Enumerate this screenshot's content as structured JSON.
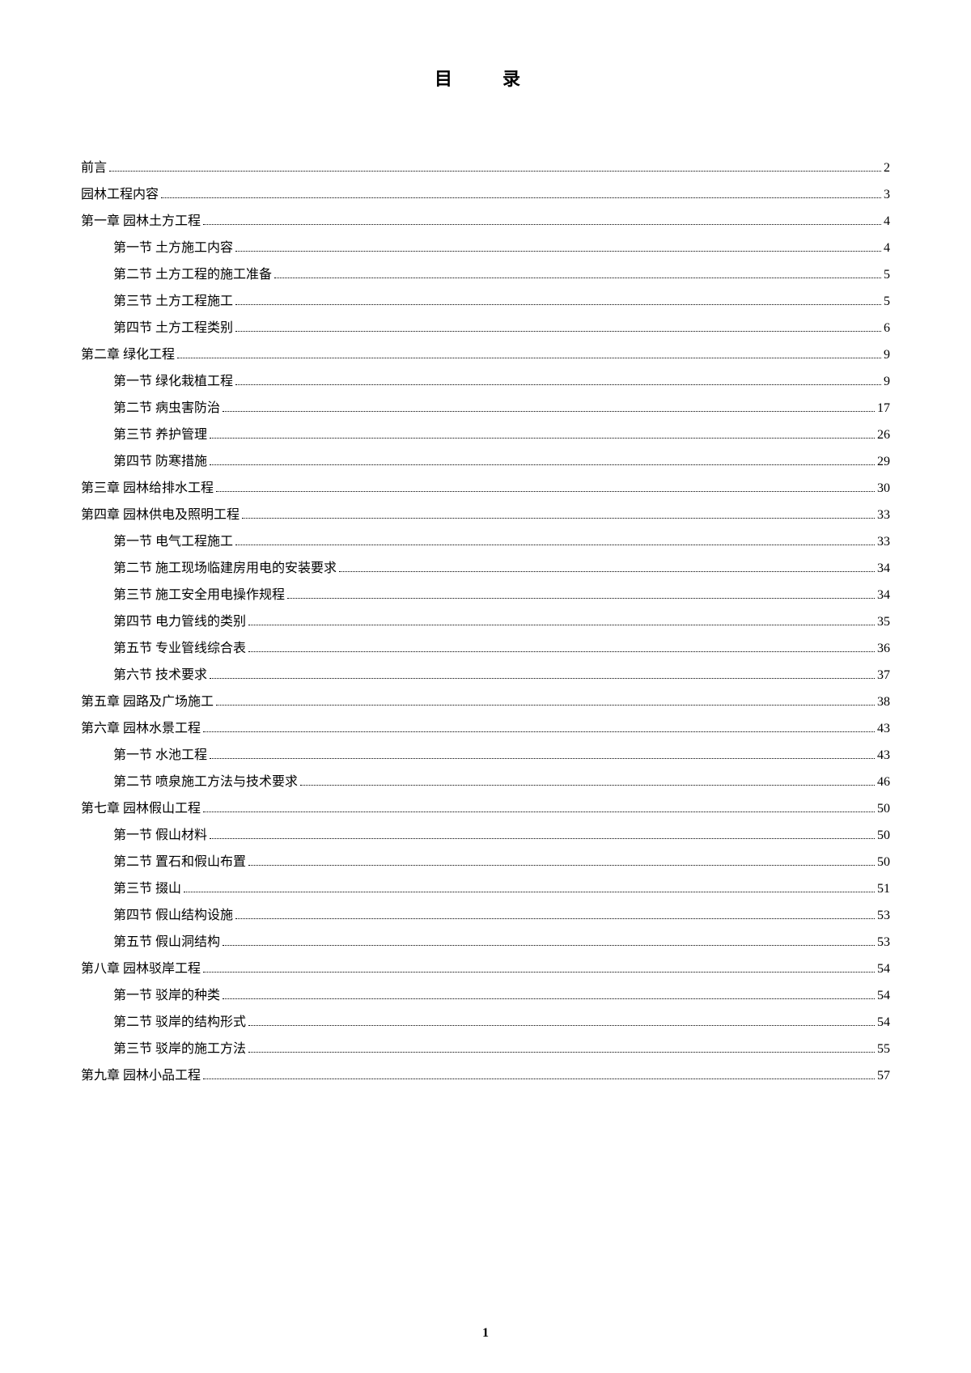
{
  "title": "目　录",
  "toc": [
    {
      "level": 0,
      "label": "前言",
      "page": "2"
    },
    {
      "level": 0,
      "label": "园林工程内容",
      "page": "3"
    },
    {
      "level": 1,
      "label": "第一章  园林土方工程",
      "page": "4"
    },
    {
      "level": 2,
      "label": "第一节  土方施工内容",
      "page": "4"
    },
    {
      "level": 2,
      "label": "第二节  土方工程的施工准备",
      "page": "5"
    },
    {
      "level": 2,
      "label": "第三节  土方工程施工",
      "page": "5"
    },
    {
      "level": 2,
      "label": "第四节  土方工程类别",
      "page": "6"
    },
    {
      "level": 1,
      "label": "第二章  绿化工程",
      "page": "9"
    },
    {
      "level": 2,
      "label": "第一节  绿化栽植工程",
      "page": "9"
    },
    {
      "level": 2,
      "label": "第二节  病虫害防治",
      "page": "17"
    },
    {
      "level": 2,
      "label": "第三节  养护管理",
      "page": "26"
    },
    {
      "level": 2,
      "label": "第四节  防寒措施",
      "page": "29"
    },
    {
      "level": 1,
      "label": "第三章  园林给排水工程",
      "page": "30"
    },
    {
      "level": 1,
      "label": "第四章  园林供电及照明工程",
      "page": "33"
    },
    {
      "level": 2,
      "label": "第一节  电气工程施工",
      "page": "33"
    },
    {
      "level": 2,
      "label": "第二节  施工现场临建房用电的安装要求",
      "page": "34"
    },
    {
      "level": 2,
      "label": "第三节  施工安全用电操作规程",
      "page": "34"
    },
    {
      "level": 2,
      "label": "第四节  电力管线的类别",
      "page": "35"
    },
    {
      "level": 2,
      "label": "第五节  专业管线综合表",
      "page": "36"
    },
    {
      "level": 2,
      "label": "第六节  技术要求",
      "page": "37"
    },
    {
      "level": 1,
      "label": "第五章  园路及广场施工",
      "page": "38"
    },
    {
      "level": 1,
      "label": "第六章  园林水景工程",
      "page": "43"
    },
    {
      "level": 2,
      "label": "第一节  水池工程",
      "page": "43"
    },
    {
      "level": 2,
      "label": "第二节  喷泉施工方法与技术要求",
      "page": "46"
    },
    {
      "level": 1,
      "label": "第七章  园林假山工程",
      "page": "50"
    },
    {
      "level": 2,
      "label": "第一节  假山材料",
      "page": "50"
    },
    {
      "level": 2,
      "label": "第二节  置石和假山布置",
      "page": "50"
    },
    {
      "level": 2,
      "label": "第三节  掇山",
      "page": "51"
    },
    {
      "level": 2,
      "label": "第四节  假山结构设施",
      "page": "53"
    },
    {
      "level": 2,
      "label": "第五节  假山洞结构",
      "page": "53"
    },
    {
      "level": 1,
      "label": "第八章  园林驳岸工程",
      "page": "54"
    },
    {
      "level": 2,
      "label": "第一节  驳岸的种类",
      "page": "54"
    },
    {
      "level": 2,
      "label": "第二节  驳岸的结构形式",
      "page": "54"
    },
    {
      "level": 2,
      "label": "第三节  驳岸的施工方法",
      "page": "55"
    },
    {
      "level": 1,
      "label": "第九章  园林小品工程",
      "page": "57"
    }
  ],
  "pageNumber": "1"
}
